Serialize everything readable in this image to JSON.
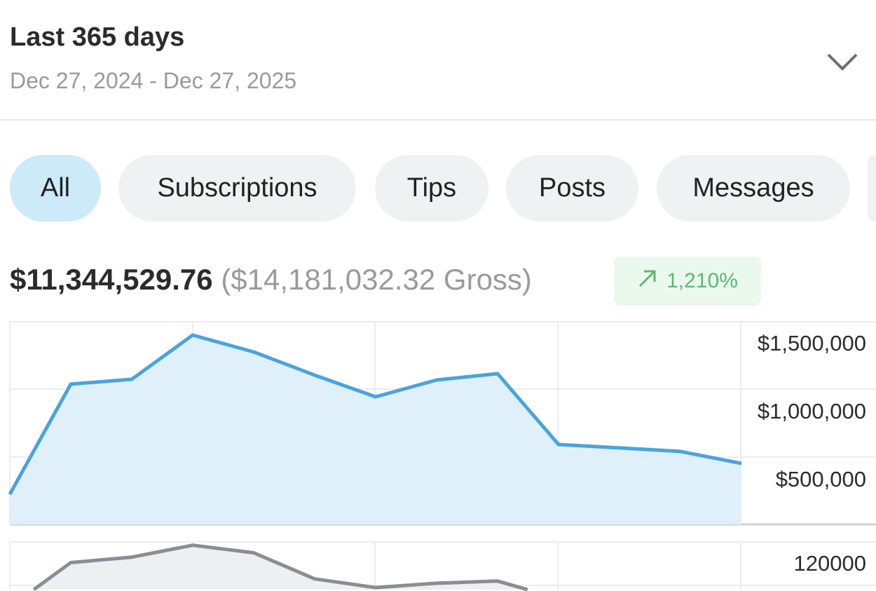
{
  "header": {
    "title": "Last 365 days",
    "date_range": "Dec 27, 2024 - Dec 27, 2025",
    "expand_icon": "chevron-down-icon"
  },
  "filters": [
    {
      "label": "All",
      "active": true
    },
    {
      "label": "Subscriptions",
      "active": false
    },
    {
      "label": "Tips",
      "active": false
    },
    {
      "label": "Posts",
      "active": false
    },
    {
      "label": "Messages",
      "active": false
    }
  ],
  "summary": {
    "net": "$11,344,529.76",
    "gross": "($14,181,032.32 Gross)",
    "change": "1,210%",
    "change_icon": "arrow-up-right-icon",
    "change_color": "#5cb874"
  },
  "colors": {
    "earnings_line": "#4aa3dc",
    "earnings_fill": "#dff0fb",
    "secondary_line": "#8a8d93",
    "secondary_fill": "#eeeff1"
  },
  "chart_data": [
    {
      "type": "area",
      "y_ticks": [
        "$1,500,000",
        "$1,000,000",
        "$500,000"
      ],
      "ylim": [
        0,
        1500000
      ],
      "grid": true,
      "values": [
        224000,
        1042000,
        1078000,
        1406000,
        1281000,
        1109000,
        948000,
        1073000,
        1120000,
        594000,
        568000,
        542000,
        453000
      ]
    },
    {
      "type": "area",
      "y_ticks": [
        "120000"
      ],
      "grid": true,
      "values": [
        60000,
        101000,
        106000,
        117000,
        110000,
        86000,
        78000,
        82000,
        84000,
        68000
      ]
    }
  ]
}
